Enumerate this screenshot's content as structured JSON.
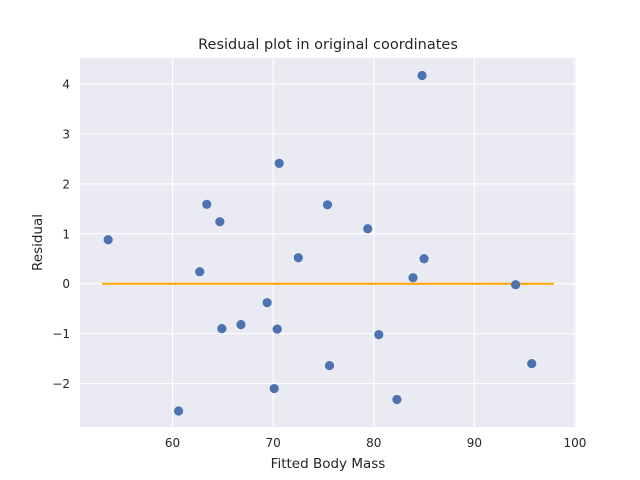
{
  "chart_data": {
    "type": "scatter",
    "title": "Residual plot in original coordinates",
    "xlabel": "Fitted Body Mass",
    "ylabel": "Residual",
    "xlim": [
      50.8,
      100.1
    ],
    "ylim": [
      -2.87,
      4.52
    ],
    "xticks": [
      60,
      70,
      80,
      90,
      100
    ],
    "yticks": [
      -2,
      -1,
      0,
      1,
      2,
      3,
      4
    ],
    "grid": true,
    "background_color": "#eaeaf2",
    "point_color": "#4c72b0",
    "reference_line": {
      "y": 0,
      "x_start": 53.0,
      "x_end": 97.9,
      "color": "#ffa500"
    },
    "points": [
      {
        "x": 53.6,
        "y": 0.88
      },
      {
        "x": 60.6,
        "y": -2.55
      },
      {
        "x": 62.7,
        "y": 0.24
      },
      {
        "x": 63.4,
        "y": 1.59
      },
      {
        "x": 64.7,
        "y": 1.24
      },
      {
        "x": 64.9,
        "y": -0.9
      },
      {
        "x": 66.8,
        "y": -0.82
      },
      {
        "x": 69.4,
        "y": -0.38
      },
      {
        "x": 70.1,
        "y": -2.1
      },
      {
        "x": 70.4,
        "y": -0.91
      },
      {
        "x": 70.6,
        "y": 2.41
      },
      {
        "x": 72.5,
        "y": 0.52
      },
      {
        "x": 75.4,
        "y": 1.58
      },
      {
        "x": 75.6,
        "y": -1.64
      },
      {
        "x": 79.4,
        "y": 1.1
      },
      {
        "x": 80.5,
        "y": -1.02
      },
      {
        "x": 82.3,
        "y": -2.32
      },
      {
        "x": 83.9,
        "y": 0.12
      },
      {
        "x": 84.8,
        "y": 4.17
      },
      {
        "x": 85.0,
        "y": 0.5
      },
      {
        "x": 94.1,
        "y": -0.02
      },
      {
        "x": 95.7,
        "y": -1.6
      }
    ]
  }
}
